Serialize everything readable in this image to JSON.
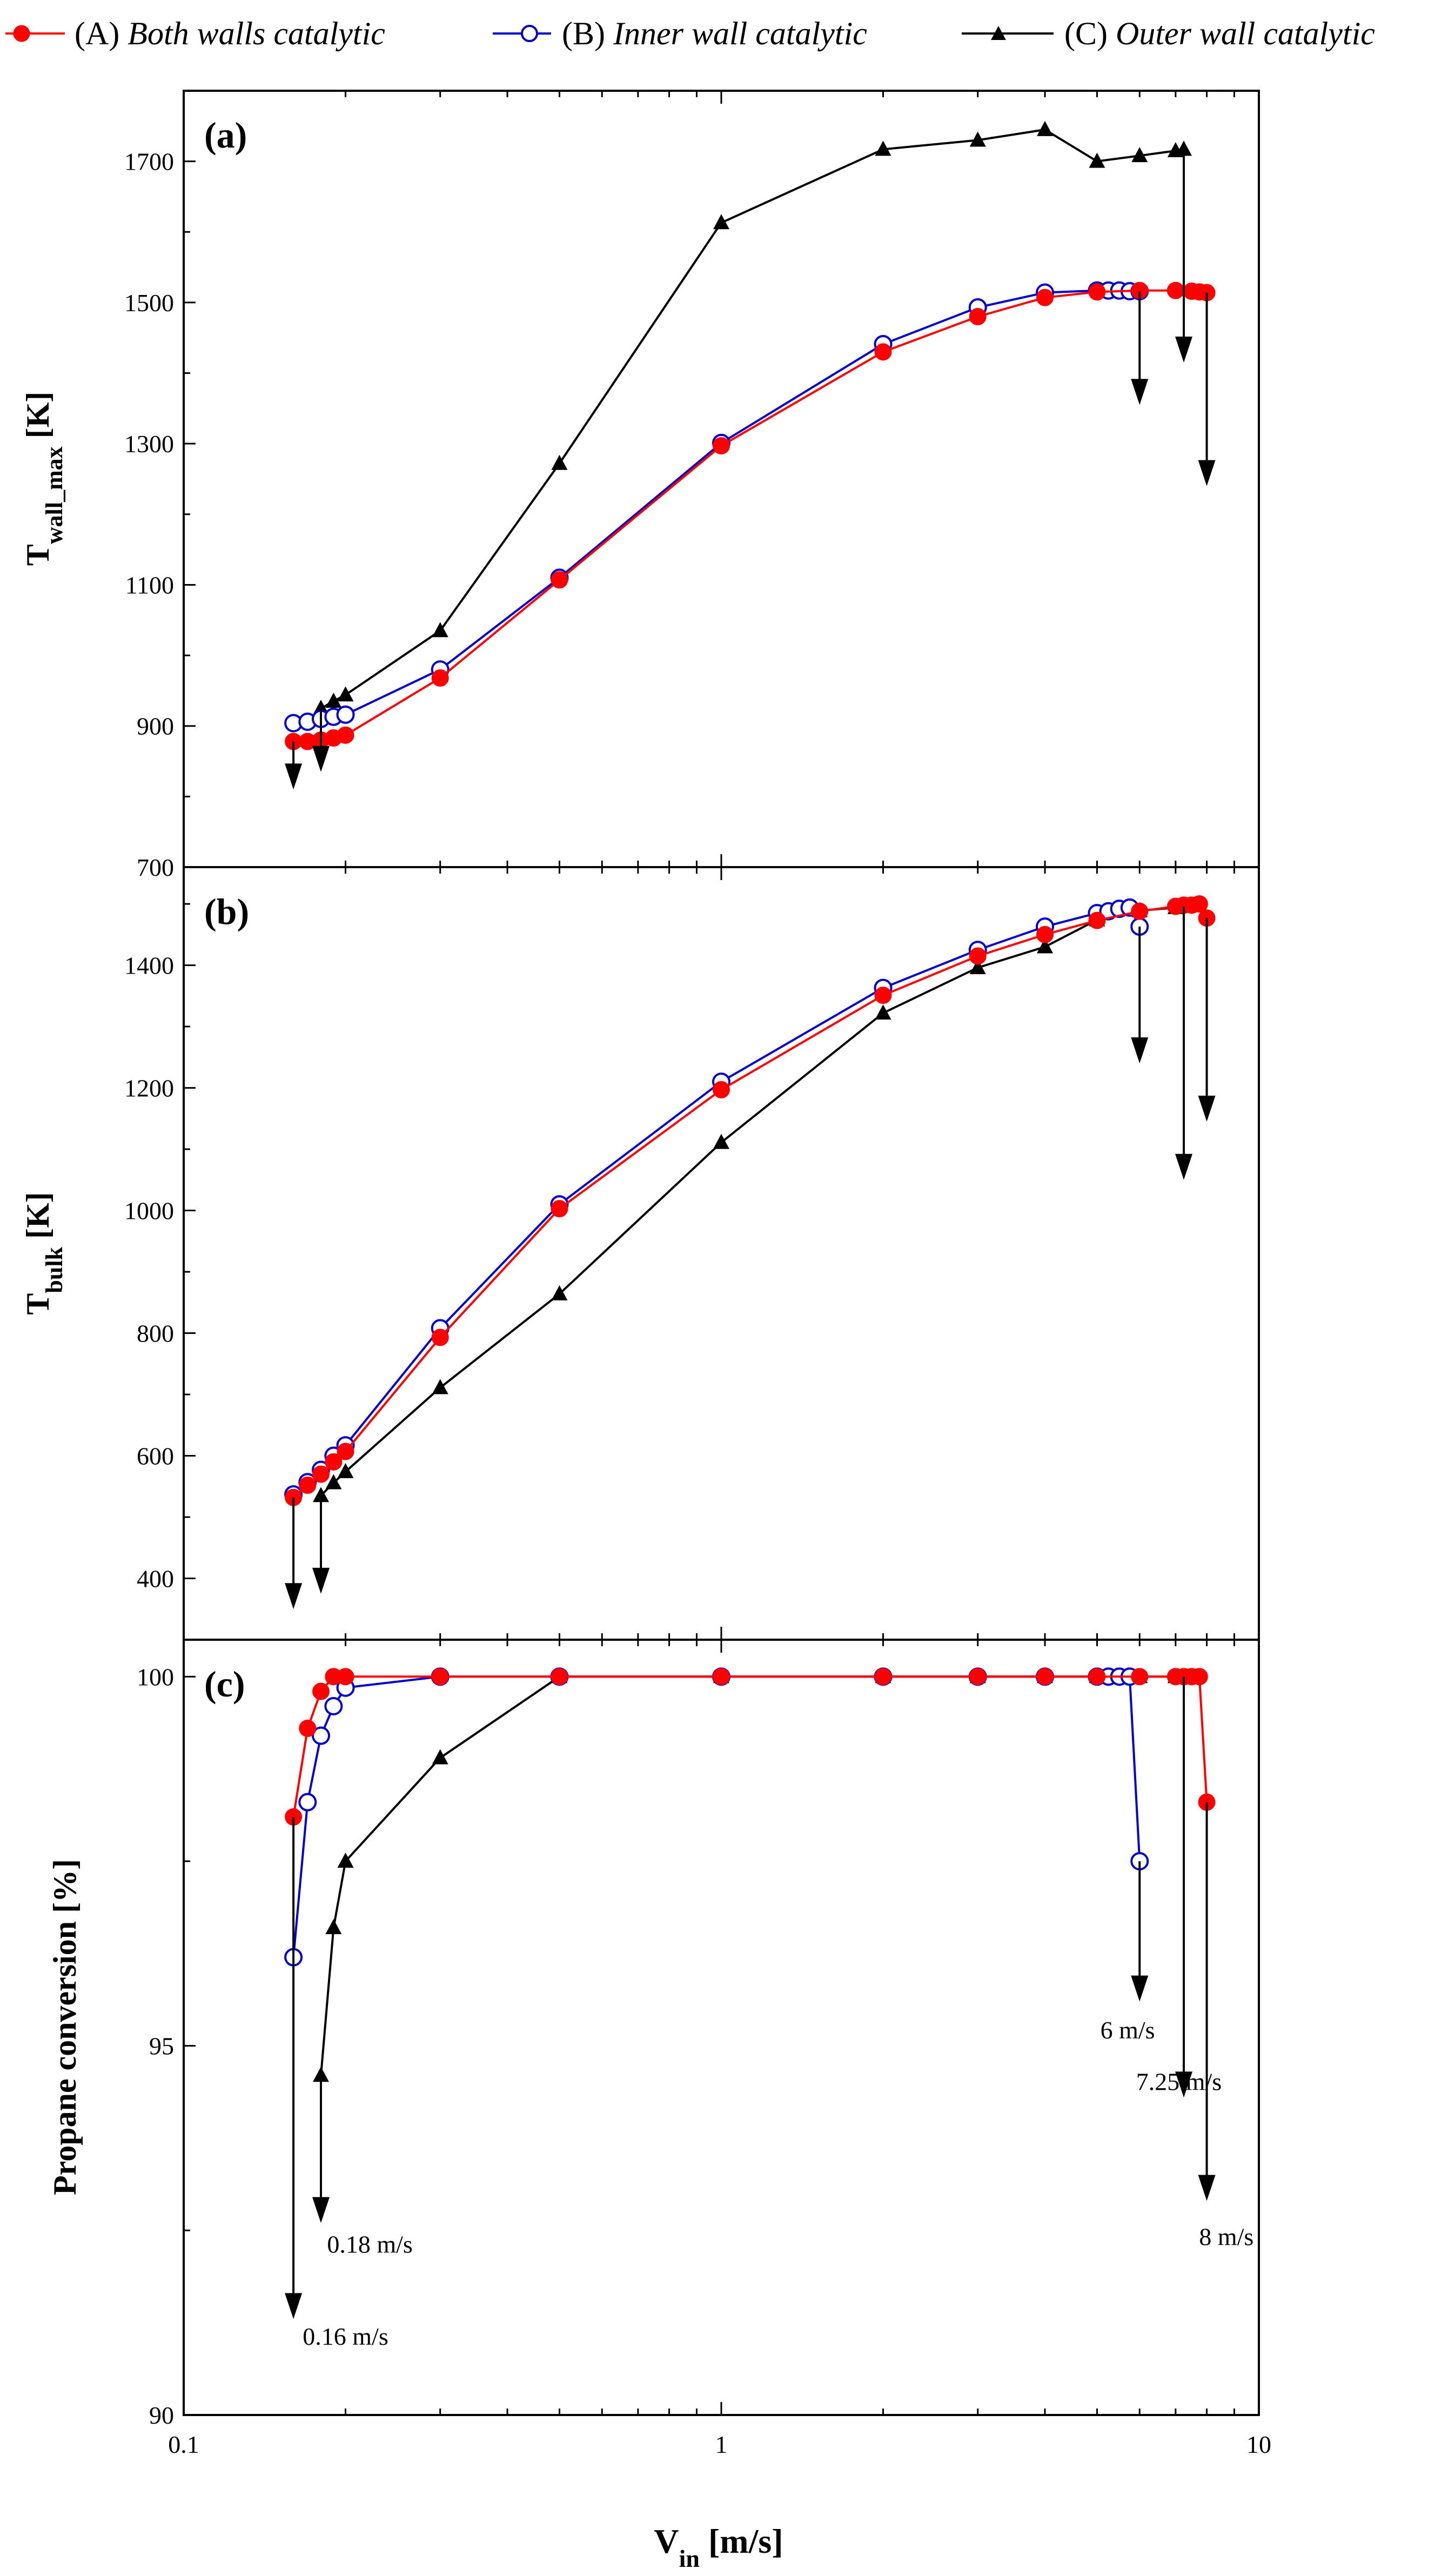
{
  "chart_data": {
    "type": "line",
    "xscale": "log",
    "xlim": [
      0.1,
      10
    ],
    "x_ticks": [
      "0.1",
      "1",
      "10"
    ],
    "xlabel_main": "V",
    "xlabel_sub": "in",
    "xlabel_unit": " [m/s]",
    "legend": [
      {
        "key": "A",
        "prefix": "(A) ",
        "label": "Both walls catalytic",
        "color": "#ff0000",
        "marker": "filled-circle"
      },
      {
        "key": "B",
        "prefix": "(B) ",
        "label": "Inner wall catalytic",
        "color": "#0000cc",
        "marker": "open-circle"
      },
      {
        "key": "C",
        "prefix": "(C) ",
        "label": "Outer wall catalytic",
        "color": "#000000",
        "marker": "triangle"
      }
    ],
    "panels": [
      {
        "id": "a",
        "label": "(a)",
        "ylabel_main": "T",
        "ylabel_sub": "wall_max",
        "ylabel_unit": " [K]",
        "ylim": [
          700,
          1800
        ],
        "y_ticks": [
          700,
          900,
          1100,
          1300,
          1500,
          1700
        ],
        "y_tick_labels": [
          "700",
          "900",
          "1100",
          "1300",
          "1500",
          "1700"
        ],
        "series": [
          {
            "key": "A",
            "x": [
              0.16,
              0.17,
              0.18,
              0.19,
              0.2,
              0.3,
              0.5,
              1,
              2,
              3,
              4,
              5,
              6,
              7,
              7.5,
              7.75,
              8
            ],
            "y": [
              878,
              878,
              880,
              883,
              887,
              968,
              1107,
              1297,
              1430,
              1480,
              1507,
              1515,
              1517,
              1517,
              1516,
              1515,
              1514
            ]
          },
          {
            "key": "B",
            "x": [
              0.16,
              0.17,
              0.18,
              0.19,
              0.2,
              0.3,
              0.5,
              1,
              2,
              3,
              4,
              5,
              5.25,
              5.5,
              5.75,
              6
            ],
            "y": [
              904,
              906,
              910,
              913,
              916,
              980,
              1110,
              1301,
              1441,
              1493,
              1514,
              1517,
              1517,
              1517,
              1516,
              1516
            ]
          },
          {
            "key": "C",
            "x": [
              0.18,
              0.19,
              0.2,
              0.3,
              0.5,
              1,
              2,
              3,
              4,
              5,
              6,
              7,
              7.25
            ],
            "y": [
              925,
              935,
              944,
              1035,
              1272,
              1613,
              1717,
              1730,
              1745,
              1700,
              1708,
              1715,
              1717
            ]
          }
        ],
        "arrows": [
          {
            "x": 0.16,
            "from": 878,
            "to": 810
          },
          {
            "x": 0.18,
            "from": 925,
            "to": 835
          },
          {
            "x": 6,
            "from": 1516,
            "to": 1355
          },
          {
            "x": 7.25,
            "from": 1717,
            "to": 1415
          },
          {
            "x": 8,
            "from": 1514,
            "to": 1240
          }
        ]
      },
      {
        "id": "b",
        "label": "(b)",
        "ylabel_main": "T",
        "ylabel_sub": "bulk",
        "ylabel_unit": " [K]",
        "ylim": [
          300,
          1560
        ],
        "y_ticks": [
          400,
          600,
          800,
          1000,
          1200,
          1400
        ],
        "y_tick_labels": [
          "400",
          "600",
          "800",
          "1000",
          "1200",
          "1400"
        ],
        "series": [
          {
            "key": "A",
            "x": [
              0.16,
              0.17,
              0.18,
              0.19,
              0.2,
              0.3,
              0.5,
              1,
              2,
              3,
              4,
              5,
              6,
              7,
              7.25,
              7.5,
              7.75,
              8
            ],
            "y": [
              532,
              552,
              570,
              590,
              607,
              793,
              1003,
              1197,
              1351,
              1415,
              1450,
              1473,
              1488,
              1496,
              1498,
              1498,
              1500,
              1477
            ]
          },
          {
            "key": "B",
            "x": [
              0.16,
              0.17,
              0.18,
              0.19,
              0.2,
              0.3,
              0.5,
              1,
              2,
              3,
              4,
              5,
              5.25,
              5.5,
              5.75,
              6
            ],
            "y": [
              537,
              557,
              577,
              600,
              617,
              808,
              1010,
              1210,
              1363,
              1425,
              1463,
              1485,
              1488,
              1492,
              1494,
              1463
            ]
          },
          {
            "key": "C",
            "x": [
              0.18,
              0.19,
              0.2,
              0.3,
              0.5,
              1,
              2,
              3,
              4,
              5,
              6,
              7,
              7.25
            ],
            "y": [
              535,
              556,
              574,
              711,
              864,
              1111,
              1322,
              1396,
              1430,
              1474,
              1489,
              1494,
              1496
            ]
          }
        ],
        "arrows": [
          {
            "x": 0.16,
            "from": 532,
            "to": 350
          },
          {
            "x": 0.18,
            "from": 535,
            "to": 375
          },
          {
            "x": 6,
            "from": 1463,
            "to": 1240
          },
          {
            "x": 7.25,
            "from": 1496,
            "to": 1050
          },
          {
            "x": 8,
            "from": 1477,
            "to": 1145
          }
        ]
      },
      {
        "id": "c",
        "label": "(c)",
        "ylabel_main": "Propane conversion [%]",
        "ylabel_sub": "",
        "ylabel_unit": "",
        "ylim": [
          90,
          100.5
        ],
        "y_ticks": [
          90,
          95,
          100
        ],
        "y_tick_labels": [
          "90",
          "95",
          "100"
        ],
        "series": [
          {
            "key": "A",
            "x": [
              0.16,
              0.17,
              0.18,
              0.19,
              0.2,
              0.3,
              0.5,
              1,
              2,
              3,
              4,
              5,
              6,
              7,
              7.25,
              7.5,
              7.75,
              8
            ],
            "y": [
              98.1,
              99.3,
              99.8,
              100,
              100,
              100,
              100,
              100,
              100,
              100,
              100,
              100,
              100,
              100,
              100,
              100,
              100,
              98.3
            ]
          },
          {
            "key": "B",
            "x": [
              0.16,
              0.17,
              0.18,
              0.19,
              0.2,
              0.3,
              0.5,
              1,
              2,
              3,
              4,
              5,
              5.25,
              5.5,
              5.75,
              6
            ],
            "y": [
              96.2,
              98.3,
              99.2,
              99.6,
              99.85,
              100,
              100,
              100,
              100,
              100,
              100,
              100,
              100,
              100,
              100,
              97.5
            ]
          },
          {
            "key": "C",
            "x": [
              0.18,
              0.19,
              0.2,
              0.3,
              0.5,
              1,
              2,
              3,
              4,
              5,
              6,
              7,
              7.25
            ],
            "y": [
              94.6,
              96.6,
              97.5,
              98.9,
              100,
              100,
              100,
              100,
              100,
              100,
              100,
              100,
              100
            ]
          }
        ],
        "arrows": [
          {
            "x": 0.16,
            "from": 98.1,
            "to": 91.3
          },
          {
            "x": 0.18,
            "from": 94.6,
            "to": 92.6
          },
          {
            "x": 6,
            "from": 97.5,
            "to": 95.6
          },
          {
            "x": 7.25,
            "from": 100,
            "to": 94.3
          },
          {
            "x": 8,
            "from": 98.3,
            "to": 92.9
          }
        ],
        "annotations": [
          {
            "text": "0.16  m/s",
            "x": 0.2,
            "y": 90.95
          },
          {
            "text": "0.18  m/s",
            "x": 0.222,
            "y": 92.2
          },
          {
            "text": "6 m/s",
            "x": 5.7,
            "y": 95.1
          },
          {
            "text": "7.25  m/s",
            "x": 7.1,
            "y": 94.4
          },
          {
            "text": "8 m/s",
            "x": 8.7,
            "y": 92.3
          }
        ]
      }
    ]
  }
}
